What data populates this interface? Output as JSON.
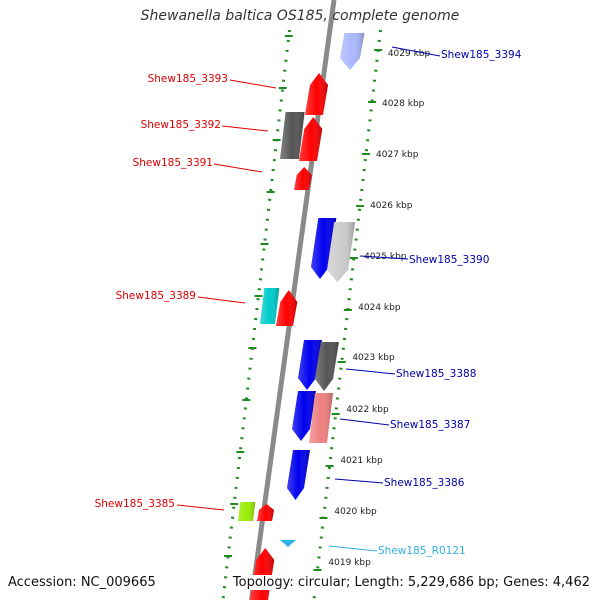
{
  "title": "Shewanella baltica OS185, complete genome",
  "footer": {
    "accession": "Accession: NC_009665",
    "summary": "Topology: circular; Length: 5,229,686 bp; Genes: 4,462"
  },
  "colors": {
    "backbone": "#8a8a8a",
    "ruler": "#1f8a1f",
    "label_left": "#dd0000",
    "label_right": "#0000aa",
    "label_rna": "#2fb0e0"
  },
  "ruler_labels": [
    "4029 kbp",
    "4028 kbp",
    "4027 kbp",
    "4026 kbp",
    "4025 kbp",
    "4024 kbp",
    "4023 kbp",
    "4022 kbp",
    "4021 kbp",
    "4020 kbp",
    "4019 kbp"
  ],
  "features": [
    {
      "label": "Shew185_3394",
      "side": "right",
      "color": "#aab8ff",
      "strand": "rev",
      "row": 0
    },
    {
      "label": "Shew185_3393",
      "side": "left",
      "color": "#ff0000",
      "strand": "fwd",
      "row": 1
    },
    {
      "label": "Shew185_3392",
      "side": "left",
      "color": "#ff0000",
      "strand": "fwd",
      "row": 2
    },
    {
      "label": "",
      "side": "left",
      "color": "#555555",
      "strand": "none",
      "row": 3
    },
    {
      "label": "Shew185_3391",
      "side": "left",
      "color": "#ff0000",
      "strand": "fwd",
      "row": 4
    },
    {
      "label": "Shew185_3390",
      "side": "right",
      "color": "#0000ee",
      "strand": "rev",
      "row": 5
    },
    {
      "label": "",
      "side": "right",
      "color": "#cccccc",
      "strand": "rev",
      "row": 6
    },
    {
      "label": "Shew185_3389",
      "side": "left",
      "color": "#00cccc",
      "strand": "none",
      "row": 7
    },
    {
      "label": "",
      "side": "left",
      "color": "#ff0000",
      "strand": "fwd",
      "row": 8
    },
    {
      "label": "",
      "side": "right",
      "color": "#0000ee",
      "strand": "rev",
      "row": 9
    },
    {
      "label": "Shew185_3388",
      "side": "right",
      "color": "#555555",
      "strand": "rev",
      "row": 10
    },
    {
      "label": "",
      "side": "right",
      "color": "#0000ee",
      "strand": "rev",
      "row": 11
    },
    {
      "label": "Shew185_3387",
      "side": "right",
      "color": "#f08080",
      "strand": "none",
      "row": 12
    },
    {
      "label": "Shew185_3386",
      "side": "right",
      "color": "#0000ee",
      "strand": "rev",
      "row": 13
    },
    {
      "label": "Shew185_3385",
      "side": "left",
      "color": "#99ee00",
      "strand": "none",
      "row": 14
    },
    {
      "label": "",
      "side": "left",
      "color": "#ff0000",
      "strand": "fwd",
      "row": 15
    },
    {
      "label": "Shew185_R0121",
      "side": "right",
      "color": "#2fb0e0",
      "strand": "rev",
      "row": 16
    },
    {
      "label": "",
      "side": "left",
      "color": "#ff0000",
      "strand": "fwd",
      "row": 17
    }
  ]
}
